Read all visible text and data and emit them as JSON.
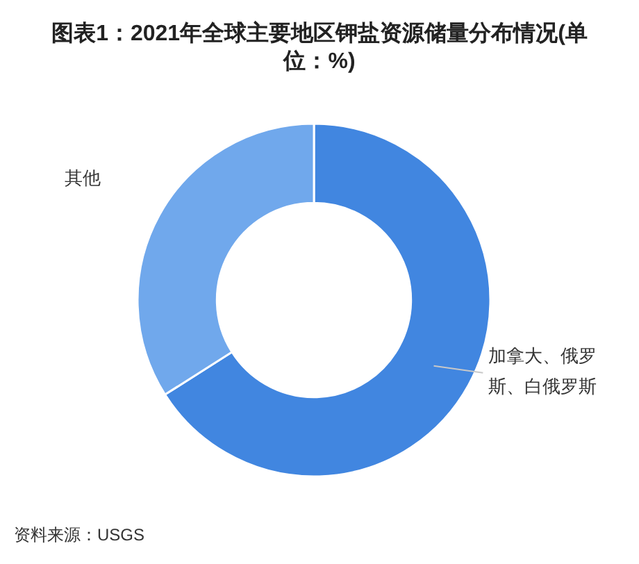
{
  "chart_data": {
    "type": "donut",
    "title": "图表1：2021年全球主要地区钾盐资源储量分布情况(单位：%)",
    "categories": [
      "加拿大、俄罗斯、白俄罗斯",
      "其他"
    ],
    "values": [
      66,
      34
    ],
    "colors": [
      "#4186e0",
      "#70a8ec"
    ],
    "annotations": [
      "资料来源：USGS"
    ]
  }
}
